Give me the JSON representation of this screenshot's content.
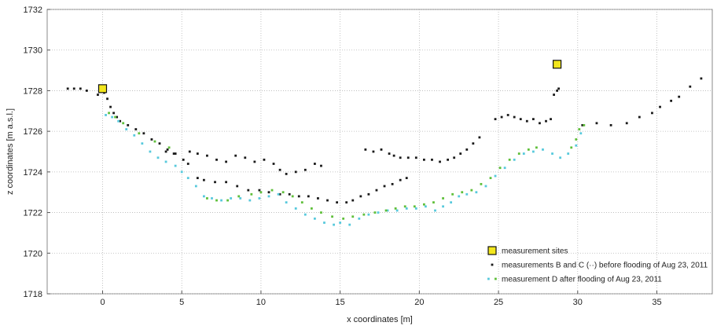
{
  "chart_data": {
    "type": "scatter",
    "title": "",
    "xlabel": "x coordinates [m]",
    "ylabel": "z coordinates [m a.s.l.]",
    "xlim": [
      -3.5,
      38.5
    ],
    "ylim": [
      1718,
      1732
    ],
    "xticks": [
      0,
      5,
      10,
      15,
      20,
      25,
      30,
      35
    ],
    "yticks": [
      1718,
      1720,
      1722,
      1724,
      1726,
      1728,
      1730,
      1732
    ],
    "grid": true,
    "legend_position": "bottom-right",
    "colors": {
      "sites": "#f2e61c",
      "bc": "#1a1a1a",
      "d_cyan": "#57c9dc",
      "d_green": "#5fbf3a"
    },
    "series": [
      {
        "name": "measurement sites",
        "marker": "square",
        "color": "#f2e61c",
        "points": [
          [
            0.0,
            1728.1
          ],
          [
            28.7,
            1729.3
          ]
        ]
      },
      {
        "name": "measurements B and C (··) before flooding of Aug 23, 2011",
        "marker": "dot",
        "color": "#1a1a1a",
        "points": [
          [
            -2.2,
            1728.1
          ],
          [
            -1.8,
            1728.1
          ],
          [
            -1.4,
            1728.1
          ],
          [
            -1.0,
            1728.0
          ],
          [
            -0.3,
            1727.8
          ],
          [
            0.1,
            1727.9
          ],
          [
            0.3,
            1727.6
          ],
          [
            0.5,
            1727.2
          ],
          [
            0.7,
            1726.9
          ],
          [
            0.9,
            1726.7
          ],
          [
            1.1,
            1726.5
          ],
          [
            1.6,
            1726.3
          ],
          [
            2.1,
            1726.1
          ],
          [
            2.6,
            1725.9
          ],
          [
            3.1,
            1725.6
          ],
          [
            3.6,
            1725.4
          ],
          [
            4.1,
            1725.1
          ],
          [
            4.6,
            1724.9
          ],
          [
            5.1,
            1724.6
          ],
          [
            5.4,
            1724.4
          ],
          [
            4.0,
            1725.0
          ],
          [
            4.5,
            1724.9
          ],
          [
            5.5,
            1725.0
          ],
          [
            6.0,
            1724.9
          ],
          [
            6.6,
            1724.8
          ],
          [
            7.2,
            1724.6
          ],
          [
            7.8,
            1724.5
          ],
          [
            8.4,
            1724.8
          ],
          [
            9.0,
            1724.7
          ],
          [
            9.6,
            1724.5
          ],
          [
            10.2,
            1724.6
          ],
          [
            10.8,
            1724.4
          ],
          [
            11.2,
            1724.1
          ],
          [
            11.6,
            1723.9
          ],
          [
            12.2,
            1724.0
          ],
          [
            12.8,
            1724.1
          ],
          [
            13.4,
            1724.4
          ],
          [
            13.8,
            1724.3
          ],
          [
            6.0,
            1723.7
          ],
          [
            6.4,
            1723.6
          ],
          [
            7.1,
            1723.5
          ],
          [
            7.8,
            1723.5
          ],
          [
            8.5,
            1723.3
          ],
          [
            9.2,
            1723.1
          ],
          [
            9.9,
            1723.1
          ],
          [
            10.5,
            1723.0
          ],
          [
            11.2,
            1722.9
          ],
          [
            11.8,
            1722.9
          ],
          [
            12.4,
            1722.8
          ],
          [
            13.0,
            1722.8
          ],
          [
            13.6,
            1722.7
          ],
          [
            14.2,
            1722.6
          ],
          [
            14.8,
            1722.5
          ],
          [
            15.4,
            1722.5
          ],
          [
            15.8,
            1722.6
          ],
          [
            16.3,
            1722.8
          ],
          [
            16.8,
            1722.9
          ],
          [
            17.3,
            1723.1
          ],
          [
            17.8,
            1723.3
          ],
          [
            18.3,
            1723.4
          ],
          [
            18.8,
            1723.6
          ],
          [
            19.2,
            1723.7
          ],
          [
            16.6,
            1725.1
          ],
          [
            17.1,
            1725.0
          ],
          [
            17.6,
            1725.1
          ],
          [
            18.1,
            1724.9
          ],
          [
            18.4,
            1724.8
          ],
          [
            18.8,
            1724.7
          ],
          [
            19.3,
            1724.7
          ],
          [
            19.8,
            1724.7
          ],
          [
            20.3,
            1724.6
          ],
          [
            20.8,
            1724.6
          ],
          [
            21.3,
            1724.5
          ],
          [
            21.8,
            1724.6
          ],
          [
            22.2,
            1724.7
          ],
          [
            22.6,
            1724.9
          ],
          [
            23.0,
            1725.1
          ],
          [
            23.4,
            1725.4
          ],
          [
            23.8,
            1725.7
          ],
          [
            24.8,
            1726.6
          ],
          [
            25.2,
            1726.7
          ],
          [
            25.6,
            1726.8
          ],
          [
            26.0,
            1726.7
          ],
          [
            26.4,
            1726.6
          ],
          [
            26.8,
            1726.5
          ],
          [
            27.2,
            1726.6
          ],
          [
            27.6,
            1726.4
          ],
          [
            28.0,
            1726.5
          ],
          [
            28.3,
            1726.6
          ],
          [
            28.5,
            1727.8
          ],
          [
            28.7,
            1728.0
          ],
          [
            28.8,
            1728.1
          ],
          [
            30.3,
            1726.3
          ],
          [
            31.2,
            1726.4
          ],
          [
            32.1,
            1726.3
          ],
          [
            33.1,
            1726.4
          ],
          [
            33.9,
            1726.7
          ],
          [
            34.7,
            1726.9
          ],
          [
            35.2,
            1727.2
          ],
          [
            35.9,
            1727.5
          ],
          [
            36.4,
            1727.7
          ],
          [
            37.1,
            1728.2
          ],
          [
            37.8,
            1728.6
          ]
        ]
      },
      {
        "name": "measurement D after flooding of Aug 23, 2011",
        "marker": "dot",
        "color": "#57c9dc",
        "points": [
          [
            0.2,
            1726.8
          ],
          [
            0.6,
            1726.7
          ],
          [
            1.0,
            1726.5
          ],
          [
            1.5,
            1726.1
          ],
          [
            2.0,
            1725.8
          ],
          [
            2.5,
            1725.4
          ],
          [
            3.0,
            1725.0
          ],
          [
            3.5,
            1724.7
          ],
          [
            4.0,
            1724.5
          ],
          [
            4.6,
            1724.3
          ],
          [
            5.0,
            1724.0
          ],
          [
            5.4,
            1723.7
          ],
          [
            5.9,
            1723.3
          ],
          [
            6.4,
            1722.8
          ],
          [
            6.9,
            1722.7
          ],
          [
            7.5,
            1722.6
          ],
          [
            8.1,
            1722.7
          ],
          [
            8.7,
            1722.7
          ],
          [
            9.3,
            1722.6
          ],
          [
            9.9,
            1722.7
          ],
          [
            10.5,
            1722.8
          ],
          [
            11.1,
            1722.9
          ],
          [
            11.6,
            1722.5
          ],
          [
            12.2,
            1722.2
          ],
          [
            12.8,
            1721.9
          ],
          [
            13.4,
            1721.7
          ],
          [
            14.0,
            1721.5
          ],
          [
            14.6,
            1721.4
          ],
          [
            15.0,
            1721.5
          ],
          [
            15.6,
            1721.4
          ],
          [
            16.2,
            1721.7
          ],
          [
            16.8,
            1721.9
          ],
          [
            17.4,
            1722.0
          ],
          [
            18.0,
            1722.1
          ],
          [
            18.6,
            1722.1
          ],
          [
            19.2,
            1722.2
          ],
          [
            19.8,
            1722.2
          ],
          [
            20.4,
            1722.3
          ],
          [
            21.0,
            1722.1
          ],
          [
            21.5,
            1722.3
          ],
          [
            22.0,
            1722.5
          ],
          [
            22.5,
            1722.8
          ],
          [
            23.0,
            1722.9
          ],
          [
            23.6,
            1723.0
          ],
          [
            24.2,
            1723.3
          ],
          [
            24.8,
            1723.8
          ],
          [
            25.4,
            1724.2
          ],
          [
            26.0,
            1724.6
          ],
          [
            26.6,
            1724.9
          ],
          [
            27.2,
            1725.0
          ],
          [
            27.8,
            1725.1
          ],
          [
            28.4,
            1724.9
          ],
          [
            28.9,
            1724.7
          ],
          [
            29.4,
            1724.9
          ],
          [
            29.9,
            1725.3
          ],
          [
            30.2,
            1725.9
          ]
        ]
      },
      {
        "name": "",
        "marker": "dot",
        "color": "#5fbf3a",
        "points": [
          [
            0.4,
            1726.9
          ],
          [
            0.8,
            1726.7
          ],
          [
            1.3,
            1726.4
          ],
          [
            2.3,
            1725.9
          ],
          [
            3.3,
            1725.5
          ],
          [
            4.2,
            1725.2
          ],
          [
            6.6,
            1722.7
          ],
          [
            7.2,
            1722.6
          ],
          [
            7.9,
            1722.6
          ],
          [
            8.6,
            1722.8
          ],
          [
            9.4,
            1722.9
          ],
          [
            10.0,
            1723.0
          ],
          [
            10.7,
            1723.1
          ],
          [
            11.4,
            1723.0
          ],
          [
            12.0,
            1722.8
          ],
          [
            12.6,
            1722.5
          ],
          [
            13.2,
            1722.2
          ],
          [
            13.8,
            1722.0
          ],
          [
            14.5,
            1721.8
          ],
          [
            15.2,
            1721.7
          ],
          [
            15.8,
            1721.8
          ],
          [
            16.5,
            1721.9
          ],
          [
            17.2,
            1722.0
          ],
          [
            17.9,
            1722.1
          ],
          [
            18.5,
            1722.2
          ],
          [
            19.1,
            1722.3
          ],
          [
            19.7,
            1722.3
          ],
          [
            20.3,
            1722.4
          ],
          [
            20.9,
            1722.5
          ],
          [
            21.5,
            1722.7
          ],
          [
            22.1,
            1722.9
          ],
          [
            22.7,
            1723.0
          ],
          [
            23.3,
            1723.1
          ],
          [
            23.9,
            1723.4
          ],
          [
            24.5,
            1723.7
          ],
          [
            25.1,
            1724.2
          ],
          [
            25.7,
            1724.6
          ],
          [
            26.3,
            1724.9
          ],
          [
            26.9,
            1725.1
          ],
          [
            27.4,
            1725.2
          ],
          [
            29.6,
            1725.2
          ],
          [
            29.9,
            1725.6
          ],
          [
            30.1,
            1726.1
          ],
          [
            30.4,
            1726.3
          ]
        ]
      }
    ],
    "legend": [
      {
        "label": "measurement sites",
        "marker": "square",
        "color": "#f2e61c"
      },
      {
        "label": "measurements B and C (··) before flooding of Aug 23, 2011",
        "marker": "dot",
        "color": "#1a1a1a"
      },
      {
        "label": "measurement D after flooding of Aug 23, 2011",
        "marker": "dot-pair",
        "color": "#57c9dc",
        "color2": "#5fbf3a"
      }
    ]
  }
}
